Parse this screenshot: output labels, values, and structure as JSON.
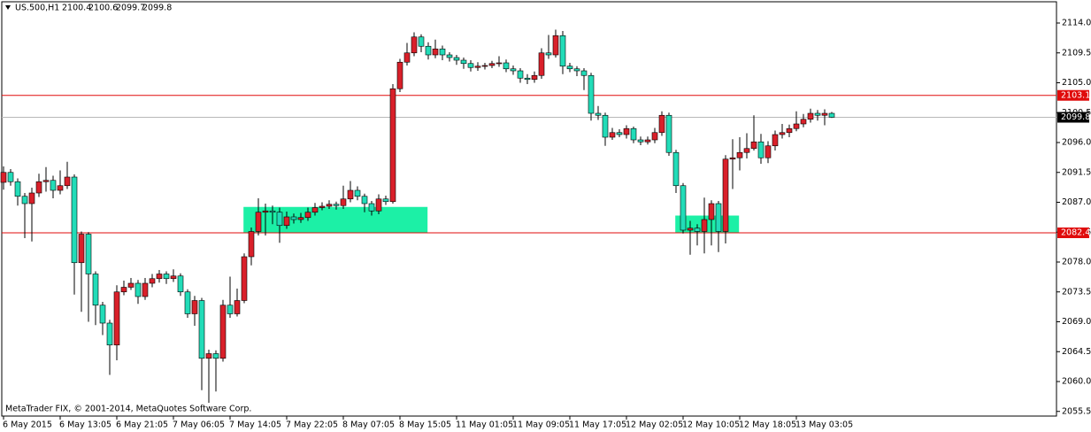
{
  "chart_data": {
    "type": "candlestick",
    "symbol": "US.500,H1",
    "copyright": "MetaTrader FIX, © 2001-2014, MetaQuotes Software Corp.",
    "categories": [
      "6 May 2015",
      null,
      null,
      null,
      null,
      null,
      null,
      null,
      "6 May 13:05",
      null,
      null,
      null,
      null,
      null,
      null,
      null,
      "6 May 21:05",
      null,
      null,
      null,
      null,
      null,
      null,
      null,
      "7 May 06:05",
      null,
      null,
      null,
      null,
      null,
      null,
      null,
      "7 May 14:05",
      null,
      null,
      null,
      null,
      null,
      null,
      null,
      "7 May 22:05",
      null,
      null,
      null,
      null,
      null,
      null,
      null,
      "8 May 07:05",
      null,
      null,
      null,
      null,
      null,
      null,
      null,
      "8 May 15:05",
      null,
      null,
      null,
      null,
      null,
      null,
      null,
      "11 May 01:05",
      null,
      null,
      null,
      null,
      null,
      null,
      null,
      "11 May 09:05",
      null,
      null,
      null,
      null,
      null,
      null,
      null,
      "11 May 17:05",
      null,
      null,
      null,
      null,
      null,
      null,
      null,
      "12 May 02:05",
      null,
      null,
      null,
      null,
      null,
      null,
      null,
      "12 May 10:05",
      null,
      null,
      null,
      null,
      null,
      null,
      null,
      "12 May 18:05",
      null,
      null,
      null,
      null,
      null,
      null,
      null,
      "13 May 03:05",
      null,
      null,
      null,
      null,
      null
    ],
    "open": [
      2090.0,
      2091.5,
      2090.1,
      2087.9,
      2086.8,
      2088.4,
      2090.1,
      2090.3,
      2088.8,
      2089.5,
      2090.8,
      2077.9,
      2082.2,
      2076.2,
      2071.5,
      2068.8,
      2065.5,
      2073.5,
      2074.2,
      2074.8,
      2072.8,
      2074.8,
      2075.5,
      2076.2,
      2075.5,
      2075.9,
      2073.5,
      2070.2,
      2072.2,
      2063.5,
      2064.2,
      2063.5,
      2071.5,
      2070.2,
      2072.2,
      2078.8,
      2082.6,
      2085.5,
      2085.7,
      2085.5,
      2083.5,
      2084.8,
      2084.4,
      2084.7,
      2085.5,
      2086.2,
      2086.4,
      2086.7,
      2086.5,
      2087.5,
      2088.8,
      2087.9,
      2086.8,
      2085.7,
      2087.5,
      2087.1,
      2104.1,
      2108.1,
      2109.5,
      2111.9,
      2110.5,
      2109.2,
      2110.1,
      2109.2,
      2108.8,
      2108.4,
      2107.9,
      2107.3,
      2107.5,
      2107.6,
      2107.9,
      2108.0,
      2107.1,
      2106.8,
      2105.7,
      2105.5,
      2106.1,
      2109.5,
      2109.2,
      2112.1,
      2107.5,
      2107.1,
      2106.8,
      2106.1,
      2100.4,
      2100.1,
      2096.8,
      2097.5,
      2097.2,
      2098.1,
      2096.4,
      2096.1,
      2096.4,
      2097.5,
      2100.1,
      2094.5,
      2089.5,
      2082.8,
      2083.1,
      2082.6,
      2084.4,
      2086.8,
      2082.6,
      2093.5,
      2093.7,
      2094.5,
      2095.1,
      2096.1,
      2093.7,
      2095.5,
      2097.2,
      2097.5,
      2098.1,
      2098.8,
      2099.5,
      2100.4,
      2100.1,
      2100.4
    ],
    "high": [
      2092.4,
      2092.0,
      2090.6,
      2088.4,
      2089.2,
      2091.3,
      2092.3,
      2091.0,
      2091.8,
      2093.1,
      2091.2,
      2082.6,
      2082.5,
      2076.6,
      2072.0,
      2069.3,
      2074.5,
      2075.2,
      2075.6,
      2075.3,
      2075.6,
      2076.2,
      2076.8,
      2076.6,
      2076.9,
      2076.3,
      2073.9,
      2072.9,
      2072.6,
      2064.8,
      2064.7,
      2072.3,
      2075.8,
      2074.0,
      2079.3,
      2083.2,
      2087.6,
      2086.8,
      2086.5,
      2086.2,
      2085.6,
      2085.3,
      2085.4,
      2086.2,
      2086.9,
      2087.0,
      2087.3,
      2087.1,
      2089.5,
      2090.2,
      2089.4,
      2088.3,
      2087.2,
      2088.2,
      2088.0,
      2104.8,
      2108.6,
      2111.0,
      2112.6,
      2112.3,
      2111.1,
      2111.5,
      2110.6,
      2109.6,
      2109.2,
      2108.8,
      2108.4,
      2108.1,
      2108.0,
      2108.3,
      2109.0,
      2108.5,
      2107.6,
      2107.2,
      2106.3,
      2106.7,
      2110.2,
      2112.2,
      2113.0,
      2112.8,
      2108.0,
      2107.5,
      2107.2,
      2106.5,
      2101.5,
      2100.5,
      2098.2,
      2098.0,
      2098.6,
      2098.4,
      2096.9,
      2096.9,
      2098.2,
      2100.7,
      2100.5,
      2094.9,
      2089.9,
      2084.2,
      2083.7,
      2087.7,
      2087.3,
      2087.2,
      2094.1,
      2096.5,
      2096.8,
      2097.4,
      2100.1,
      2097.3,
      2096.2,
      2097.8,
      2098.8,
      2098.7,
      2100.7,
      2100.3,
      2101.1,
      2100.9,
      2101.0,
      2100.6
    ],
    "low": [
      2088.9,
      2089.5,
      2086.5,
      2081.6,
      2081.1,
      2087.8,
      2088.6,
      2087.6,
      2088.2,
      2089.0,
      2073.1,
      2070.5,
      2069.0,
      2068.5,
      2067.0,
      2061.0,
      2063.2,
      2073.0,
      2073.8,
      2071.7,
      2072.3,
      2074.2,
      2074.9,
      2074.7,
      2075.0,
      2072.9,
      2069.6,
      2068.4,
      2058.7,
      2056.8,
      2058.5,
      2063.0,
      2069.6,
      2069.8,
      2071.8,
      2077.5,
      2082.0,
      2082.0,
      2083.7,
      2080.9,
      2083.0,
      2083.8,
      2083.9,
      2084.2,
      2085.0,
      2085.8,
      2086.0,
      2085.9,
      2086.0,
      2087.0,
      2087.3,
      2085.5,
      2085.0,
      2085.2,
      2086.6,
      2086.8,
      2103.6,
      2107.6,
      2109.0,
      2109.6,
      2108.5,
      2108.7,
      2108.4,
      2108.2,
      2107.7,
      2107.1,
      2106.7,
      2106.8,
      2107.0,
      2107.2,
      2107.4,
      2106.6,
      2106.2,
      2105.0,
      2104.8,
      2105.0,
      2105.6,
      2108.6,
      2108.8,
      2106.3,
      2106.6,
      2106.0,
      2103.9,
      2099.3,
      2099.4,
      2095.5,
      2096.4,
      2096.8,
      2096.6,
      2095.9,
      2095.6,
      2095.7,
      2095.9,
      2097.0,
      2094.0,
      2088.4,
      2082.3,
      2079.1,
      2080.5,
      2079.3,
      2080.5,
      2079.5,
      2080.8,
      2089.0,
      2091.8,
      2093.6,
      2094.8,
      2092.8,
      2092.9,
      2094.8,
      2096.6,
      2096.8,
      2097.7,
      2098.3,
      2099.0,
      2099.3,
      2098.6,
      2099.7
    ],
    "close": [
      2091.5,
      2090.1,
      2087.9,
      2086.8,
      2088.4,
      2090.1,
      2090.3,
      2088.8,
      2089.5,
      2090.8,
      2077.9,
      2082.2,
      2076.2,
      2071.5,
      2068.8,
      2065.5,
      2073.5,
      2074.2,
      2074.8,
      2072.8,
      2074.8,
      2075.5,
      2076.2,
      2075.5,
      2075.9,
      2073.5,
      2070.2,
      2072.2,
      2063.5,
      2064.2,
      2063.5,
      2071.5,
      2070.2,
      2072.2,
      2078.8,
      2082.6,
      2085.5,
      2085.7,
      2085.5,
      2083.5,
      2084.8,
      2084.4,
      2084.7,
      2085.5,
      2086.2,
      2086.4,
      2086.7,
      2086.5,
      2087.5,
      2088.8,
      2087.9,
      2086.8,
      2085.7,
      2087.5,
      2087.1,
      2104.1,
      2108.1,
      2109.5,
      2111.9,
      2110.5,
      2109.2,
      2110.1,
      2109.2,
      2108.8,
      2108.4,
      2107.9,
      2107.3,
      2107.5,
      2107.6,
      2107.9,
      2108.0,
      2107.1,
      2106.8,
      2105.7,
      2105.5,
      2106.1,
      2109.5,
      2109.2,
      2112.1,
      2107.5,
      2107.1,
      2106.8,
      2106.1,
      2100.4,
      2100.1,
      2096.8,
      2097.5,
      2097.2,
      2098.1,
      2096.4,
      2096.1,
      2096.4,
      2097.5,
      2100.1,
      2094.5,
      2089.5,
      2082.8,
      2083.1,
      2082.6,
      2084.4,
      2086.8,
      2082.6,
      2093.5,
      2093.7,
      2094.5,
      2095.1,
      2096.1,
      2093.7,
      2095.5,
      2097.2,
      2097.5,
      2098.1,
      2098.8,
      2099.5,
      2100.4,
      2100.1,
      2100.4,
      2099.8
    ],
    "bull_color": "#d9202a",
    "bear_color": "#22dcb8",
    "xlim": [
      -0.25,
      148.75
    ],
    "ylim": [
      2054.8,
      2117.2
    ],
    "yticks": [
      {
        "value": 2114,
        "label": "2114.0"
      },
      2109.5,
      {
        "value": 2105,
        "label": "2105.0"
      },
      2100.5,
      {
        "value": 2096,
        "label": "2096.0"
      },
      2091.5,
      {
        "value": 2087,
        "label": "2087.0"
      },
      2082.5,
      {
        "value": 2078,
        "label": "2078.0"
      },
      2073.5,
      {
        "value": 2069,
        "label": "2069.0"
      },
      2064.5,
      {
        "value": 2060,
        "label": "2060.0"
      },
      2055.5
    ],
    "grid": false,
    "levels": [
      {
        "value": 2103.1,
        "color": "#e00b0b"
      },
      {
        "value": 2082.4,
        "color": "#e00b0b"
      }
    ],
    "bid_color": "#b8b8b8",
    "zones": [
      {
        "x": [
          33.9,
          59.9
        ],
        "y": [
          2082.4,
          2086.3
        ],
        "color": "#1cf0a6"
      },
      {
        "x": [
          94.9,
          103.9
        ],
        "y": [
          2082.4,
          2085.0
        ],
        "color": "#1cf0a6"
      }
    ]
  }
}
